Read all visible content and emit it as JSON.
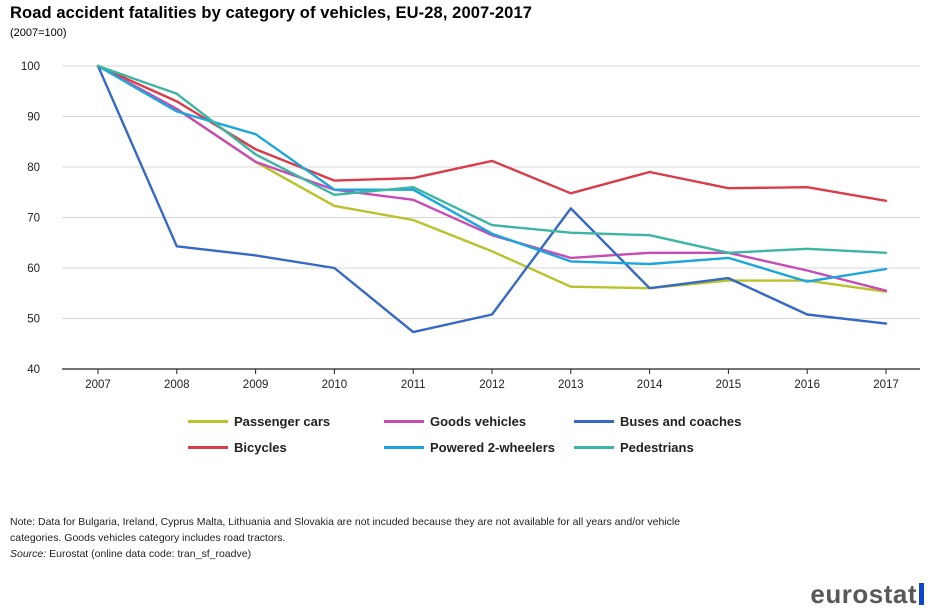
{
  "title": "Road accident fatalities by category of vehicles, EU-28, 2007-2017",
  "subtitle": "(2007=100)",
  "note": [
    "Note: Data for Bulgaria, Ireland, Cyprus Malta, Lithuania and Slovakia are not incuded because they are not available for all years and/or vehicle",
    "categories. Goods vehicles category includes road tractors."
  ],
  "source_label": "Source:",
  "source_text": " Eurostat (online data code: tran_sf_roadve)",
  "logo_text": "eurostat",
  "chart_data": {
    "type": "line",
    "title": "Road accident fatalities by category of vehicles, EU-28, 2007-2017",
    "subtitle": "(2007=100)",
    "xlabel": "",
    "ylabel": "",
    "x": [
      "2007",
      "2008",
      "2009",
      "2010",
      "2011",
      "2012",
      "2013",
      "2014",
      "2015",
      "2016",
      "2017"
    ],
    "ylim": [
      40,
      100
    ],
    "yticks": [
      40,
      50,
      60,
      70,
      80,
      90,
      100
    ],
    "grid": true,
    "legend_position": "bottom",
    "series": [
      {
        "name": "Passenger cars",
        "color": "#b9c22a",
        "values": [
          100,
          91.5,
          81,
          72.3,
          69.5,
          63.3,
          56.3,
          56,
          57.5,
          57.5,
          55.3
        ]
      },
      {
        "name": "Goods vehicles",
        "color": "#c84bb5",
        "values": [
          100,
          91.5,
          81,
          75.5,
          73.5,
          66.5,
          62,
          63,
          63,
          59.5,
          55.5
        ]
      },
      {
        "name": "Buses and coaches",
        "color": "#3569c5",
        "values": [
          100,
          64.3,
          62.5,
          60,
          47.3,
          50.8,
          71.8,
          56,
          58,
          50.8,
          49
        ]
      },
      {
        "name": "Bicycles",
        "color": "#d93c4a",
        "values": [
          100,
          93,
          83.5,
          77.3,
          77.8,
          81.2,
          74.8,
          79,
          75.8,
          76,
          73.3
        ]
      },
      {
        "name": "Powered 2-wheelers",
        "color": "#1aa6dd",
        "values": [
          100,
          91,
          86.5,
          75.5,
          75.5,
          66.8,
          61.3,
          60.8,
          62,
          57.3,
          59.8
        ]
      },
      {
        "name": "Pedestrians",
        "color": "#3cb5a3",
        "values": [
          100,
          94.5,
          82.5,
          74.5,
          76,
          68.5,
          67,
          66.5,
          63,
          63.8,
          63
        ]
      }
    ]
  }
}
